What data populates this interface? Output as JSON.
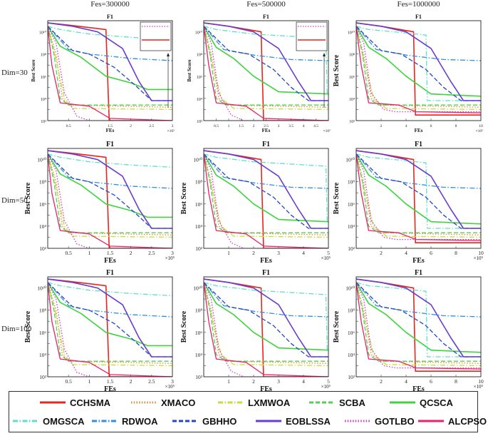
{
  "figure": {
    "column_headers": [
      "Fes=300000",
      "Fes=500000",
      "Fes=1000000"
    ],
    "row_headers": [
      "Dim=30",
      "Dim=50",
      "Dim=100"
    ]
  },
  "legend": {
    "items": [
      {
        "name": "CCHSMA",
        "color": "#e8241c",
        "dash": "solid"
      },
      {
        "name": "XMACO",
        "color": "#e08a3a",
        "dash": "dotted"
      },
      {
        "name": "LXMWOA",
        "color": "#c8dc3c",
        "dash": "dashdot"
      },
      {
        "name": "SCBA",
        "color": "#52d152",
        "dash": "dashed"
      },
      {
        "name": "QCSCA",
        "color": "#3ed43e",
        "dash": "solid"
      },
      {
        "name": "OMGSCA",
        "color": "#5fe0c8",
        "dash": "dashdot"
      },
      {
        "name": "RDWOA",
        "color": "#2f8fe0",
        "dash": "dashdot"
      },
      {
        "name": "GBHHO",
        "color": "#2446c8",
        "dash": "dashed"
      },
      {
        "name": "EOBLSSA",
        "color": "#6a3cd0",
        "dash": "solid"
      },
      {
        "name": "GOTLBO",
        "color": "#cc3ccc",
        "dash": "dotted"
      },
      {
        "name": "ALCPSO",
        "color": "#e8226e",
        "dash": "solid"
      }
    ]
  },
  "chart_data": [
    {
      "type": "line",
      "title": "F1",
      "xlabel": "FEs",
      "ylabel": "Best Score",
      "xlim": [
        0,
        3
      ],
      "x_multiplier": "×10^5",
      "ylim_log10": [
        2,
        11
      ],
      "xticks": [
        "0.5",
        "1",
        "1.5",
        "2",
        "2.5",
        "3"
      ],
      "yticks": [
        "10^10",
        "10^8",
        "10^6",
        "10^4",
        "10^2"
      ],
      "series_set": "set_a",
      "inset": true
    },
    {
      "type": "line",
      "title": "F1",
      "xlabel": "FEs",
      "ylabel": "Best Score",
      "xlim": [
        0,
        5
      ],
      "x_multiplier": "×10^5",
      "ylim_log10": [
        2,
        11
      ],
      "xticks": [
        "0.5",
        "1",
        "1.5",
        "2",
        "2.5",
        "3",
        "3.5",
        "4",
        "4.5"
      ],
      "yticks": [
        "10^10",
        "10^8",
        "10^6",
        "10^4",
        "10^2"
      ],
      "series_set": "set_b",
      "inset": true
    },
    {
      "type": "line",
      "title": "F1",
      "xlabel": "FEs",
      "ylabel": "Best Score",
      "xlim": [
        0,
        10
      ],
      "x_multiplier": "×10^5",
      "ylim_log10": [
        2,
        11
      ],
      "xticks": [
        "2",
        "4",
        "6",
        "8",
        "10"
      ],
      "yticks": [
        "10^10",
        "10^8",
        "10^6",
        "10^4",
        "10^2"
      ],
      "series_set": "set_c",
      "inset": false
    },
    {
      "type": "line",
      "title": "F1",
      "xlabel": "FEs",
      "ylabel": "Best Score",
      "xlim": [
        0,
        3
      ],
      "x_multiplier": "×10^5",
      "ylim_log10": [
        2,
        11
      ],
      "xticks": [
        "0.5",
        "1",
        "1.5",
        "2",
        "2.5",
        "3"
      ],
      "yticks": [
        "10^10",
        "10^8",
        "10^6",
        "10^4",
        "10^2"
      ],
      "series_set": "set_a",
      "inset": false
    },
    {
      "type": "line",
      "title": "F1",
      "xlabel": "FEs",
      "ylabel": "Best Score",
      "xlim": [
        0,
        5
      ],
      "x_multiplier": "×10^5",
      "ylim_log10": [
        2,
        11
      ],
      "xticks": [
        "1",
        "2",
        "3",
        "4",
        "5"
      ],
      "yticks": [
        "10^10",
        "10^8",
        "10^6",
        "10^4",
        "10^2"
      ],
      "series_set": "set_b",
      "inset": false
    },
    {
      "type": "line",
      "title": "F1",
      "xlabel": "FEs",
      "ylabel": "Best Score",
      "xlim": [
        0,
        10
      ],
      "x_multiplier": "×10^5",
      "ylim_log10": [
        2,
        11
      ],
      "xticks": [
        "2",
        "4",
        "6",
        "8",
        "10"
      ],
      "yticks": [
        "10^10",
        "10^8",
        "10^6",
        "10^4",
        "10^2"
      ],
      "series_set": "set_c",
      "inset": false
    },
    {
      "type": "line",
      "title": "F1",
      "xlabel": "FEs",
      "ylabel": "Best Score",
      "xlim": [
        0,
        3
      ],
      "x_multiplier": "×10^5",
      "ylim_log10": [
        2,
        11
      ],
      "xticks": [
        "0.5",
        "1",
        "1.5",
        "2",
        "2.5",
        "3"
      ],
      "yticks": [
        "10^10",
        "10^8",
        "10^6",
        "10^4",
        "10^2"
      ],
      "series_set": "set_a",
      "inset": false
    },
    {
      "type": "line",
      "title": "F1",
      "xlabel": "FEs",
      "ylabel": "Best Score",
      "xlim": [
        0,
        5
      ],
      "x_multiplier": "×10^5",
      "ylim_log10": [
        2,
        11
      ],
      "xticks": [
        "1",
        "2",
        "3",
        "4",
        "5"
      ],
      "yticks": [
        "10^10",
        "10^8",
        "10^6",
        "10^4",
        "10^2"
      ],
      "series_set": "set_b",
      "inset": false
    },
    {
      "type": "line",
      "title": "F1",
      "xlabel": "FEs",
      "ylabel": "Best Score",
      "xlim": [
        0,
        10
      ],
      "x_multiplier": "×10^5",
      "ylim_log10": [
        2,
        11
      ],
      "xticks": [
        "2",
        "4",
        "6",
        "8",
        "10"
      ],
      "yticks": [
        "10^10",
        "10^8",
        "10^6",
        "10^4",
        "10^2"
      ],
      "series_set": "set_c",
      "inset": false
    }
  ],
  "series_sets": {
    "set_a": [
      {
        "name": "CCHSMA",
        "points": [
          [
            0,
            10.8
          ],
          [
            0.5,
            10.6
          ],
          [
            1.4,
            10.2
          ],
          [
            1.48,
            2.0
          ],
          [
            3,
            2.0
          ]
        ]
      },
      {
        "name": "XMACO",
        "points": [
          [
            0,
            10.5
          ],
          [
            0.2,
            8
          ],
          [
            0.35,
            4
          ],
          [
            0.5,
            3.4
          ],
          [
            3,
            3.2
          ]
        ]
      },
      {
        "name": "LXMWOA",
        "points": [
          [
            0,
            10.5
          ],
          [
            0.2,
            7.5
          ],
          [
            0.4,
            4
          ],
          [
            0.6,
            3.1
          ],
          [
            3,
            3.0
          ]
        ]
      },
      {
        "name": "SCBA",
        "points": [
          [
            0,
            10.5
          ],
          [
            0.15,
            8
          ],
          [
            0.3,
            4
          ],
          [
            0.5,
            3.4
          ],
          [
            3,
            3.4
          ]
        ]
      },
      {
        "name": "QCSCA",
        "points": [
          [
            0,
            10.5
          ],
          [
            0.3,
            8.7
          ],
          [
            0.8,
            7.7
          ],
          [
            1.4,
            6.0
          ],
          [
            2.0,
            5.4
          ],
          [
            2.4,
            4.8
          ],
          [
            3,
            4.8
          ]
        ]
      },
      {
        "name": "OMGSCA",
        "points": [
          [
            0,
            10.5
          ],
          [
            0.3,
            10.2
          ],
          [
            1.0,
            9.8
          ],
          [
            2.0,
            9.5
          ],
          [
            3,
            9.3
          ]
        ]
      },
      {
        "name": "RDWOA",
        "points": [
          [
            0,
            10.5
          ],
          [
            0.5,
            8.4
          ],
          [
            1.0,
            8.0
          ],
          [
            2.0,
            7.6
          ],
          [
            3,
            7.4
          ]
        ]
      },
      {
        "name": "GBHHO",
        "points": [
          [
            0,
            10.5
          ],
          [
            0.6,
            8.3
          ],
          [
            1.0,
            8.0
          ],
          [
            1.6,
            6.8
          ],
          [
            2.1,
            5.2
          ],
          [
            2.5,
            3.8
          ],
          [
            3,
            3.8
          ]
        ]
      },
      {
        "name": "EOBLSSA",
        "points": [
          [
            0,
            10.8
          ],
          [
            0.6,
            10.5
          ],
          [
            1.2,
            10.0
          ],
          [
            1.8,
            8.5
          ],
          [
            2.2,
            5.5
          ],
          [
            2.5,
            3.8
          ],
          [
            3,
            3.8
          ]
        ]
      },
      {
        "name": "GOTLBO",
        "points": [
          [
            0,
            10.5
          ],
          [
            0.2,
            9
          ],
          [
            0.4,
            4.5
          ],
          [
            0.7,
            2.4
          ],
          [
            1.0,
            2.0
          ],
          [
            3,
            2.0
          ]
        ]
      },
      {
        "name": "ALCPSO",
        "points": [
          [
            0,
            10.5
          ],
          [
            0.1,
            7
          ],
          [
            0.3,
            3.6
          ],
          [
            1.0,
            3.3
          ],
          [
            1.5,
            2.2
          ],
          [
            3,
            2.0
          ]
        ]
      }
    ],
    "set_b": [
      {
        "name": "CCHSMA",
        "points": [
          [
            0,
            10.8
          ],
          [
            1.0,
            10.5
          ],
          [
            2.3,
            10.0
          ],
          [
            2.4,
            2.0
          ],
          [
            5,
            2.0
          ]
        ]
      },
      {
        "name": "XMACO",
        "points": [
          [
            0,
            10.5
          ],
          [
            0.3,
            8
          ],
          [
            0.6,
            4
          ],
          [
            1.0,
            3.4
          ],
          [
            5,
            3.2
          ]
        ]
      },
      {
        "name": "LXMWOA",
        "points": [
          [
            0,
            10.5
          ],
          [
            0.3,
            7.5
          ],
          [
            0.7,
            4
          ],
          [
            1.2,
            3.1
          ],
          [
            5,
            3.0
          ]
        ]
      },
      {
        "name": "SCBA",
        "points": [
          [
            0,
            10.5
          ],
          [
            0.25,
            8
          ],
          [
            0.5,
            4
          ],
          [
            0.9,
            3.4
          ],
          [
            5,
            3.4
          ]
        ]
      },
      {
        "name": "QCSCA",
        "points": [
          [
            0,
            10.5
          ],
          [
            0.5,
            8.6
          ],
          [
            1.2,
            7.6
          ],
          [
            2.0,
            6.0
          ],
          [
            3.0,
            4.6
          ],
          [
            5,
            4.4
          ]
        ]
      },
      {
        "name": "OMGSCA",
        "points": [
          [
            0,
            10.5
          ],
          [
            0.5,
            10.2
          ],
          [
            2.0,
            9.8
          ],
          [
            4.9,
            9.4
          ],
          [
            4.95,
            4.4
          ],
          [
            5,
            4.4
          ]
        ]
      },
      {
        "name": "RDWOA",
        "points": [
          [
            0,
            10.5
          ],
          [
            0.8,
            8.4
          ],
          [
            2.0,
            7.9
          ],
          [
            3.5,
            7.5
          ],
          [
            5,
            7.4
          ]
        ]
      },
      {
        "name": "GBHHO",
        "points": [
          [
            0,
            10.5
          ],
          [
            1.0,
            8.3
          ],
          [
            1.8,
            8.0
          ],
          [
            2.8,
            6.6
          ],
          [
            3.5,
            5.0
          ],
          [
            4.2,
            3.8
          ],
          [
            5,
            3.8
          ]
        ]
      },
      {
        "name": "EOBLSSA",
        "points": [
          [
            0,
            10.8
          ],
          [
            1.0,
            10.5
          ],
          [
            2.0,
            10.0
          ],
          [
            3.0,
            8.5
          ],
          [
            3.8,
            5.5
          ],
          [
            4.3,
            3.8
          ],
          [
            5,
            3.8
          ]
        ]
      },
      {
        "name": "GOTLBO",
        "points": [
          [
            0,
            10.5
          ],
          [
            0.3,
            9
          ],
          [
            0.6,
            4.5
          ],
          [
            1.1,
            2.5
          ],
          [
            1.6,
            2.0
          ],
          [
            5,
            2.0
          ]
        ]
      },
      {
        "name": "ALCPSO",
        "points": [
          [
            0,
            10.5
          ],
          [
            0.2,
            7
          ],
          [
            0.5,
            3.6
          ],
          [
            1.7,
            3.3
          ],
          [
            2.4,
            2.2
          ],
          [
            5,
            2.0
          ]
        ]
      }
    ],
    "set_c": [
      {
        "name": "CCHSMA",
        "points": [
          [
            0,
            10.8
          ],
          [
            2.0,
            10.5
          ],
          [
            4.6,
            10.0
          ],
          [
            4.75,
            2.5
          ],
          [
            10,
            2.5
          ]
        ]
      },
      {
        "name": "XMACO",
        "points": [
          [
            0,
            10.5
          ],
          [
            0.6,
            8
          ],
          [
            1.2,
            4
          ],
          [
            2.0,
            3.4
          ],
          [
            10,
            3.2
          ]
        ]
      },
      {
        "name": "LXMWOA",
        "points": [
          [
            0,
            10.5
          ],
          [
            0.6,
            7.5
          ],
          [
            1.4,
            4
          ],
          [
            2.4,
            3.1
          ],
          [
            10,
            3.0
          ]
        ]
      },
      {
        "name": "SCBA",
        "points": [
          [
            0,
            10.5
          ],
          [
            0.5,
            8
          ],
          [
            1.0,
            4
          ],
          [
            1.8,
            3.4
          ],
          [
            10,
            3.4
          ]
        ]
      },
      {
        "name": "QCSCA",
        "points": [
          [
            0,
            10.5
          ],
          [
            1.0,
            8.6
          ],
          [
            2.4,
            7.6
          ],
          [
            4.0,
            6.0
          ],
          [
            6.0,
            4.4
          ],
          [
            10,
            4.2
          ]
        ]
      },
      {
        "name": "OMGSCA",
        "points": [
          [
            0,
            10.5
          ],
          [
            1.0,
            10.2
          ],
          [
            4.0,
            9.9
          ],
          [
            5.6,
            9.7
          ],
          [
            5.7,
            3.8
          ],
          [
            10,
            3.8
          ]
        ]
      },
      {
        "name": "RDWOA",
        "points": [
          [
            0,
            10.5
          ],
          [
            1.6,
            8.4
          ],
          [
            4.0,
            7.9
          ],
          [
            7.0,
            7.5
          ],
          [
            10,
            7.4
          ]
        ]
      },
      {
        "name": "GBHHO",
        "points": [
          [
            0,
            10.5
          ],
          [
            2.0,
            8.3
          ],
          [
            3.6,
            8.0
          ],
          [
            5.6,
            6.6
          ],
          [
            7.0,
            5.0
          ],
          [
            8.4,
            3.8
          ],
          [
            10,
            3.8
          ]
        ]
      },
      {
        "name": "EOBLSSA",
        "points": [
          [
            0,
            10.8
          ],
          [
            2.0,
            10.5
          ],
          [
            4.0,
            10.0
          ],
          [
            6.0,
            8.5
          ],
          [
            7.6,
            5.5
          ],
          [
            8.6,
            3.8
          ],
          [
            10,
            3.8
          ]
        ]
      },
      {
        "name": "GOTLBO",
        "points": [
          [
            0,
            10.5
          ],
          [
            0.6,
            9
          ],
          [
            1.2,
            4.5
          ],
          [
            2.2,
            3.0
          ],
          [
            3.2,
            2.8
          ],
          [
            10,
            2.8
          ]
        ]
      },
      {
        "name": "ALCPSO",
        "points": [
          [
            0,
            10.5
          ],
          [
            0.4,
            7
          ],
          [
            1.0,
            3.6
          ],
          [
            3.4,
            3.4
          ],
          [
            4.8,
            2.8
          ],
          [
            10,
            2.7
          ]
        ]
      }
    ]
  }
}
